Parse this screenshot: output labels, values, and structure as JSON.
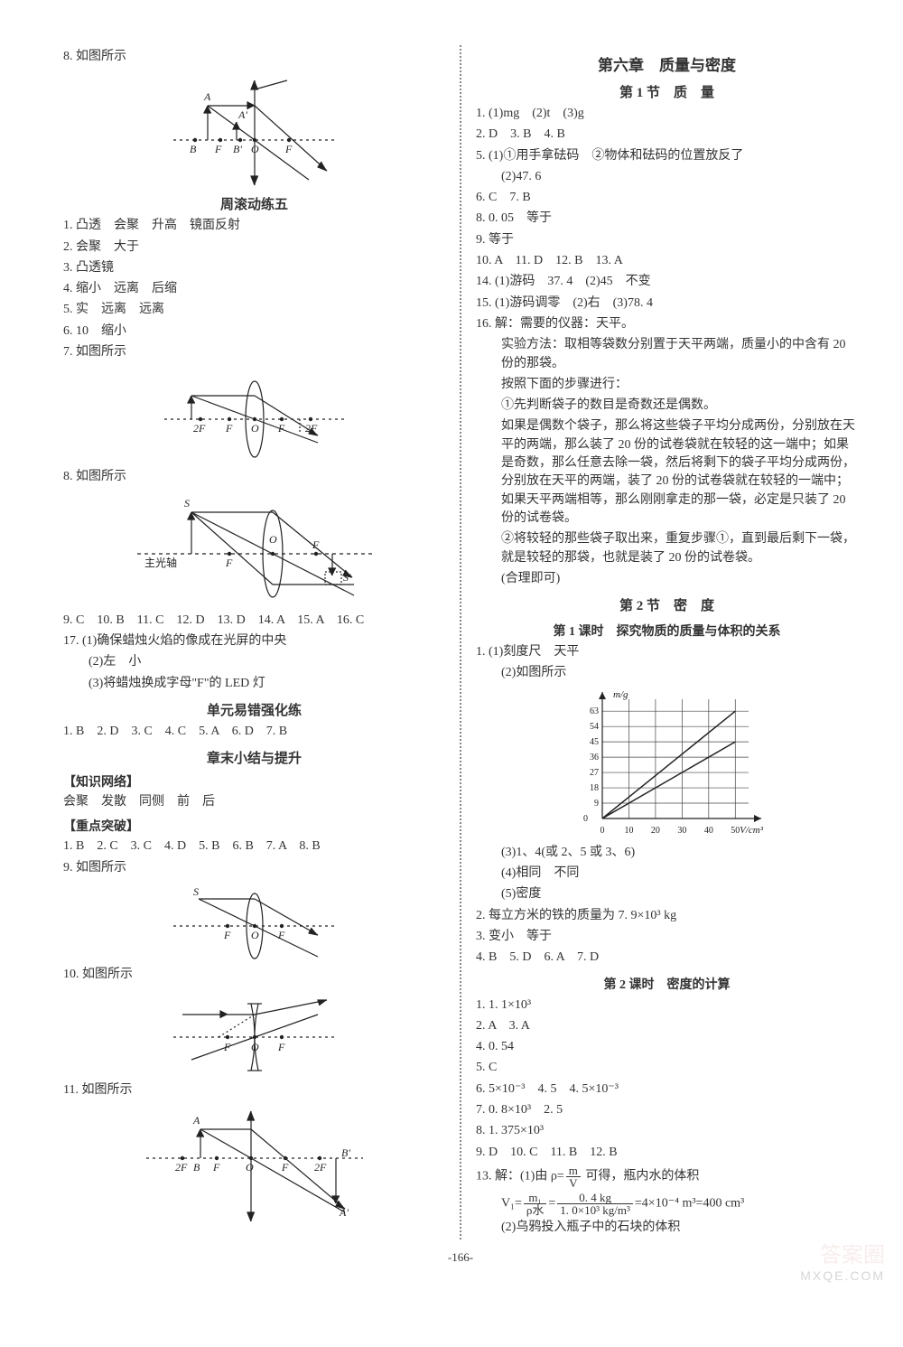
{
  "page_number": "-166-",
  "watermark": {
    "line1": "答案圈",
    "line2": "MXQE.COM"
  },
  "left": {
    "q8_intro": "8. 如图所示",
    "fig_q8": {
      "type": "diagram",
      "labels": [
        "A",
        "A'",
        "B",
        "F",
        "B'",
        "O",
        "F"
      ],
      "axis_color": "#222",
      "line_color": "#222"
    },
    "heading_roll5": "周滚动练五",
    "r5": {
      "1": "1. 凸透　会聚　升高　镜面反射",
      "2": "2. 会聚　大于",
      "3": "3. 凸透镜",
      "4": "4. 缩小　远离　后缩",
      "5": "5. 实　远离　远离",
      "6": "6. 10　缩小",
      "7": "7. 如图所示"
    },
    "fig_r5_7": {
      "type": "diagram",
      "labels": [
        "2F",
        "F",
        "O",
        "F",
        "2F"
      ],
      "axis_color": "#222"
    },
    "r5_8_intro": "8. 如图所示",
    "fig_r5_8": {
      "type": "diagram",
      "labels": [
        "S",
        "主光轴",
        "F",
        "O",
        "F",
        "S'"
      ],
      "axis_color": "#222"
    },
    "r5_mc": "9. C　10. B　11. C　12. D　13. D　14. A　15. A　16. C",
    "r5_17_1": "17. (1)确保蜡烛火焰的像成在光屏的中央",
    "r5_17_2": "(2)左　小",
    "r5_17_3": "(3)将蜡烛换成字母\"F\"的 LED 灯",
    "heading_errors": "单元易错强化练",
    "errors_mc": "1. B　2. D　3. C　4. C　5. A　6. D　7. B",
    "heading_summary": "章末小结与提升",
    "knowledge_heading": "【知识网络】",
    "knowledge_line": "会聚　发散　同侧　前　后",
    "focus_heading": "【重点突破】",
    "focus_mc": "1. B　2. C　3. C　4. D　5. B　6. B　7. A　8. B",
    "focus_9_intro": "9. 如图所示",
    "fig_focus_9": {
      "type": "diagram",
      "labels": [
        "S",
        "F",
        "O",
        "F"
      ],
      "axis_color": "#222"
    },
    "focus_10_intro": "10. 如图所示",
    "fig_focus_10": {
      "type": "diagram",
      "labels": [
        "F",
        "O",
        "F"
      ],
      "axis_color": "#222"
    },
    "focus_11_intro": "11. 如图所示",
    "fig_focus_11": {
      "type": "diagram",
      "labels": [
        "A",
        "B",
        "2F",
        "F",
        "O",
        "F",
        "2F",
        "B'",
        "A'"
      ],
      "axis_color": "#222"
    }
  },
  "right": {
    "heading_ch6": "第六章　质量与密度",
    "heading_s1": "第 1 节　质　量",
    "s1": {
      "1": "1. (1)mg　(2)t　(3)g",
      "2": "2. D　3. B　4. B",
      "5_1": "5. (1)①用手拿砝码　②物体和砝码的位置放反了",
      "5_2": "(2)47. 6",
      "6": "6. C　7. B",
      "8": "8. 0. 05　等于",
      "9": "9. 等于",
      "10": "10. A　11. D　12. B　13. A",
      "14": "14. (1)游码　37. 4　(2)45　不变",
      "15": "15. (1)游码调零　(2)右　(3)78. 4",
      "16_a": "16. 解：需要的仪器：天平。",
      "16_b": "实验方法：取相等袋数分别置于天平两端，质量小的中含有 20 份的那袋。",
      "16_c": "按照下面的步骤进行：",
      "16_d": "①先判断袋子的数目是奇数还是偶数。",
      "16_e": "如果是偶数个袋子，那么将这些袋子平均分成两份，分别放在天平的两端，那么装了 20 份的试卷袋就在较轻的这一端中；如果是奇数，那么任意去除一袋，然后将剩下的袋子平均分成两份，分别放在天平的两端，装了 20 份的试卷袋就在较轻的一端中；如果天平两端相等，那么刚刚拿走的那一袋，必定是只装了 20 份的试卷袋。",
      "16_f": "②将较轻的那些袋子取出来，重复步骤①，直到最后剩下一袋，就是较轻的那袋，也就是装了 20 份的试卷袋。",
      "16_g": "(合理即可)"
    },
    "heading_s2": "第 2 节　密　度",
    "heading_s2_1": "第 1 课时　探究物质的质量与体积的关系",
    "s2_1": {
      "1_1": "1. (1)刻度尺　天平",
      "1_2": "(2)如图所示",
      "chart": {
        "type": "line",
        "xlabel": "V/cm³",
        "ylabel": "m/g",
        "x_ticks": [
          0,
          10,
          20,
          30,
          40,
          50
        ],
        "y_ticks": [
          0,
          9,
          18,
          27,
          36,
          45,
          54,
          63
        ],
        "xlim": [
          0,
          55
        ],
        "ylim": [
          0,
          70
        ],
        "grid_color": "#444",
        "background_color": "#ffffff",
        "axis_color": "#222",
        "line_color": "#222",
        "series": [
          {
            "points": [
              [
                0,
                0
              ],
              [
                50,
                63
              ]
            ]
          },
          {
            "points": [
              [
                0,
                0
              ],
              [
                50,
                45
              ]
            ]
          }
        ]
      },
      "1_3": "(3)1、4(或 2、5 或 3、6)",
      "1_4": "(4)相同　不同",
      "1_5": "(5)密度",
      "2": "2. 每立方米的铁的质量为 7. 9×10³ kg",
      "3": "3. 变小　等于",
      "4": "4. B　5. D　6. A　7. D"
    },
    "heading_s2_2": "第 2 课时　密度的计算",
    "s2_2": {
      "1": "1. 1. 1×10³",
      "2": "2. A　3. A",
      "4": "4. 0. 54",
      "5": "5. C",
      "6": "6. 5×10⁻³　4. 5　4. 5×10⁻³",
      "7": "7. 0. 8×10³　2. 5",
      "8": "8. 1. 375×10³",
      "9": "9. D　10. C　11. B　12. B",
      "13_a_prefix": "13. 解：(1)由 ρ=",
      "13_a_suffix": " 可得，瓶内水的体积",
      "13_frac_m": "m",
      "13_frac_v": "V",
      "13_b_prefix": "V₁=",
      "13_b_num1": "m₁",
      "13_b_den1": "ρ水",
      "13_b_num2": "0. 4 kg",
      "13_b_den2": "1. 0×10³ kg/m³",
      "13_b_suffix": "=4×10⁻⁴ m³=400 cm³",
      "13_c": "(2)乌鸦投入瓶子中的石块的体积"
    }
  }
}
